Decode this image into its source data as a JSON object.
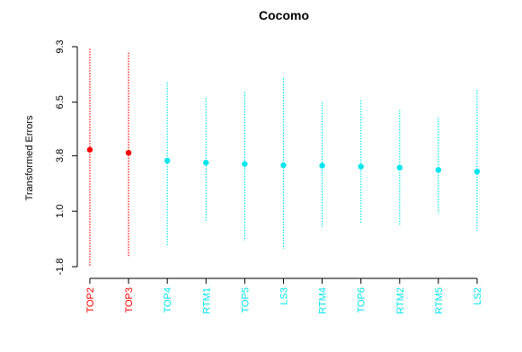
{
  "chart_data": {
    "type": "scatter",
    "title": "Cocomo",
    "xlabel": "",
    "ylabel": "Transformed Errors",
    "yticks": [
      "-1.8",
      "1.0",
      "3.8",
      "6.5",
      "9.3"
    ],
    "ylim": [
      -1.8,
      9.3
    ],
    "grid": false,
    "categories": [
      "TOP2",
      "TOP3",
      "TOP4",
      "RTM1",
      "TOP5",
      "LS3",
      "RTM4",
      "TOP6",
      "RTM2",
      "RTM5",
      "LS2"
    ],
    "values": [
      4.1,
      3.95,
      3.55,
      3.45,
      3.38,
      3.32,
      3.3,
      3.25,
      3.2,
      3.08,
      3.0
    ],
    "upper": [
      9.2,
      9.0,
      7.5,
      6.7,
      7.0,
      7.7,
      6.5,
      6.6,
      6.1,
      5.7,
      7.1
    ],
    "lower": [
      -1.8,
      -1.3,
      -0.8,
      0.5,
      -0.5,
      -0.9,
      0.2,
      0.4,
      0.3,
      0.9,
      0.0
    ],
    "colors": [
      "#ff0000",
      "#ff0000",
      "#00e5ee",
      "#00e5ee",
      "#00e5ee",
      "#00e5ee",
      "#00e5ee",
      "#00e5ee",
      "#00e5ee",
      "#00e5ee",
      "#00e5ee"
    ]
  }
}
